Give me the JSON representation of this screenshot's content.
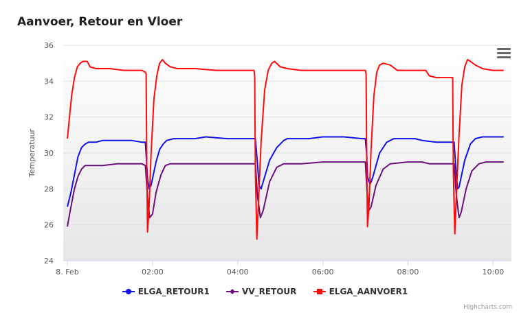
{
  "chart_data": {
    "type": "line",
    "title": "Aanvoer, Retour en Vloer",
    "ylabel": "Temperatuur",
    "xlabel": "",
    "ylim": [
      24,
      36
    ],
    "yticks": [
      "24",
      "26",
      "28",
      "30",
      "32",
      "34",
      "36"
    ],
    "xlim": [
      "00:00",
      "10:20"
    ],
    "xticks": [
      {
        "t": "00:00",
        "label": "8. Feb"
      },
      {
        "t": "02:00",
        "label": "02:00"
      },
      {
        "t": "04:00",
        "label": "04:00"
      },
      {
        "t": "06:00",
        "label": "06:00"
      },
      {
        "t": "08:00",
        "label": "08:00"
      },
      {
        "t": "10:00",
        "label": "10:00"
      }
    ],
    "grid": true,
    "legend_position": "bottom",
    "series": [
      {
        "name": "ELGA_RETOUR1",
        "color": "#1010e8",
        "marker": "circle",
        "points": [
          [
            "00:00",
            27.0
          ],
          [
            "00:05",
            27.8
          ],
          [
            "00:10",
            28.8
          ],
          [
            "00:15",
            29.8
          ],
          [
            "00:20",
            30.3
          ],
          [
            "00:25",
            30.5
          ],
          [
            "00:30",
            30.6
          ],
          [
            "00:40",
            30.6
          ],
          [
            "00:50",
            30.7
          ],
          [
            "01:05",
            30.7
          ],
          [
            "01:30",
            30.7
          ],
          [
            "01:45",
            30.6
          ],
          [
            "01:50",
            30.6
          ],
          [
            "01:53",
            28.6
          ],
          [
            "01:55",
            28.0
          ],
          [
            "01:58",
            28.2
          ],
          [
            "02:05",
            29.5
          ],
          [
            "02:10",
            30.2
          ],
          [
            "02:15",
            30.5
          ],
          [
            "02:20",
            30.7
          ],
          [
            "02:30",
            30.8
          ],
          [
            "02:50",
            30.8
          ],
          [
            "03:00",
            30.8
          ],
          [
            "03:15",
            30.9
          ],
          [
            "03:45",
            30.8
          ],
          [
            "04:20",
            30.8
          ],
          [
            "04:25",
            30.8
          ],
          [
            "04:28",
            29.4
          ],
          [
            "04:30",
            28.2
          ],
          [
            "04:33",
            28.0
          ],
          [
            "04:36",
            28.4
          ],
          [
            "04:45",
            29.6
          ],
          [
            "04:55",
            30.3
          ],
          [
            "05:05",
            30.7
          ],
          [
            "05:10",
            30.8
          ],
          [
            "05:25",
            30.8
          ],
          [
            "05:40",
            30.8
          ],
          [
            "06:00",
            30.9
          ],
          [
            "06:30",
            30.9
          ],
          [
            "06:55",
            30.8
          ],
          [
            "07:00",
            30.8
          ],
          [
            "07:02",
            29.8
          ],
          [
            "07:03",
            28.7
          ],
          [
            "07:05",
            28.4
          ],
          [
            "07:07",
            28.3
          ],
          [
            "07:10",
            28.6
          ],
          [
            "07:20",
            30.0
          ],
          [
            "07:30",
            30.6
          ],
          [
            "07:40",
            30.8
          ],
          [
            "07:50",
            30.8
          ],
          [
            "08:10",
            30.8
          ],
          [
            "08:20",
            30.7
          ],
          [
            "08:40",
            30.6
          ],
          [
            "09:00",
            30.6
          ],
          [
            "09:05",
            30.6
          ],
          [
            "09:08",
            28.8
          ],
          [
            "09:10",
            28.0
          ],
          [
            "09:12",
            28.1
          ],
          [
            "09:20",
            29.6
          ],
          [
            "09:28",
            30.5
          ],
          [
            "09:35",
            30.8
          ],
          [
            "09:45",
            30.9
          ],
          [
            "10:00",
            30.9
          ],
          [
            "10:15",
            30.9
          ]
        ]
      },
      {
        "name": "VV_RETOUR",
        "color": "#6b0f7a",
        "marker": "diamond",
        "points": [
          [
            "00:00",
            25.9
          ],
          [
            "00:05",
            27.0
          ],
          [
            "00:10",
            28.0
          ],
          [
            "00:15",
            28.7
          ],
          [
            "00:20",
            29.1
          ],
          [
            "00:25",
            29.3
          ],
          [
            "00:30",
            29.3
          ],
          [
            "00:50",
            29.3
          ],
          [
            "01:10",
            29.4
          ],
          [
            "01:30",
            29.4
          ],
          [
            "01:45",
            29.4
          ],
          [
            "01:50",
            29.3
          ],
          [
            "01:53",
            27.5
          ],
          [
            "01:56",
            26.4
          ],
          [
            "02:00",
            26.6
          ],
          [
            "02:05",
            27.8
          ],
          [
            "02:12",
            28.8
          ],
          [
            "02:18",
            29.3
          ],
          [
            "02:25",
            29.4
          ],
          [
            "03:00",
            29.4
          ],
          [
            "03:30",
            29.4
          ],
          [
            "04:00",
            29.4
          ],
          [
            "04:25",
            29.4
          ],
          [
            "04:28",
            27.6
          ],
          [
            "04:32",
            26.4
          ],
          [
            "04:36",
            26.8
          ],
          [
            "04:45",
            28.4
          ],
          [
            "04:55",
            29.2
          ],
          [
            "05:05",
            29.4
          ],
          [
            "05:30",
            29.4
          ],
          [
            "06:00",
            29.5
          ],
          [
            "06:30",
            29.5
          ],
          [
            "07:00",
            29.5
          ],
          [
            "07:02",
            28.0
          ],
          [
            "07:05",
            26.8
          ],
          [
            "07:08",
            27.0
          ],
          [
            "07:15",
            28.2
          ],
          [
            "07:25",
            29.1
          ],
          [
            "07:35",
            29.4
          ],
          [
            "08:00",
            29.5
          ],
          [
            "08:20",
            29.5
          ],
          [
            "08:30",
            29.4
          ],
          [
            "09:00",
            29.4
          ],
          [
            "09:05",
            29.4
          ],
          [
            "09:08",
            27.7
          ],
          [
            "09:12",
            26.4
          ],
          [
            "09:15",
            26.7
          ],
          [
            "09:22",
            28.0
          ],
          [
            "09:30",
            29.0
          ],
          [
            "09:40",
            29.4
          ],
          [
            "09:50",
            29.5
          ],
          [
            "10:15",
            29.5
          ]
        ]
      },
      {
        "name": "ELGA_AANVOER1",
        "color": "#ff0a0a",
        "marker": "square",
        "points": [
          [
            "00:00",
            30.8
          ],
          [
            "00:03",
            32.0
          ],
          [
            "00:06",
            33.2
          ],
          [
            "00:10",
            34.2
          ],
          [
            "00:14",
            34.8
          ],
          [
            "00:18",
            35.0
          ],
          [
            "00:22",
            35.1
          ],
          [
            "00:28",
            35.1
          ],
          [
            "00:32",
            34.8
          ],
          [
            "00:40",
            34.7
          ],
          [
            "01:00",
            34.7
          ],
          [
            "01:20",
            34.6
          ],
          [
            "01:45",
            34.6
          ],
          [
            "01:50",
            34.5
          ],
          [
            "01:51",
            34.4
          ],
          [
            "01:52",
            29.0
          ],
          [
            "01:53",
            25.6
          ],
          [
            "01:55",
            26.8
          ],
          [
            "01:58",
            30.0
          ],
          [
            "02:02",
            33.0
          ],
          [
            "02:06",
            34.3
          ],
          [
            "02:10",
            35.0
          ],
          [
            "02:14",
            35.2
          ],
          [
            "02:18",
            35.0
          ],
          [
            "02:25",
            34.8
          ],
          [
            "02:35",
            34.7
          ],
          [
            "03:00",
            34.7
          ],
          [
            "03:30",
            34.6
          ],
          [
            "04:00",
            34.6
          ],
          [
            "04:23",
            34.6
          ],
          [
            "04:24",
            34.3
          ],
          [
            "04:25",
            29.0
          ],
          [
            "04:27",
            25.2
          ],
          [
            "04:29",
            27.0
          ],
          [
            "04:33",
            30.6
          ],
          [
            "04:38",
            33.5
          ],
          [
            "04:43",
            34.6
          ],
          [
            "04:48",
            35.0
          ],
          [
            "04:52",
            35.1
          ],
          [
            "05:00",
            34.8
          ],
          [
            "05:10",
            34.7
          ],
          [
            "05:30",
            34.6
          ],
          [
            "06:00",
            34.6
          ],
          [
            "06:30",
            34.6
          ],
          [
            "07:00",
            34.6
          ],
          [
            "07:01",
            34.4
          ],
          [
            "07:02",
            29.0
          ],
          [
            "07:03",
            25.9
          ],
          [
            "07:05",
            27.0
          ],
          [
            "07:08",
            30.2
          ],
          [
            "07:12",
            33.2
          ],
          [
            "07:16",
            34.5
          ],
          [
            "07:20",
            34.9
          ],
          [
            "07:25",
            35.0
          ],
          [
            "07:35",
            34.9
          ],
          [
            "07:45",
            34.6
          ],
          [
            "08:10",
            34.6
          ],
          [
            "08:25",
            34.6
          ],
          [
            "08:30",
            34.3
          ],
          [
            "08:40",
            34.2
          ],
          [
            "09:00",
            34.2
          ],
          [
            "09:03",
            34.2
          ],
          [
            "09:04",
            29.0
          ],
          [
            "09:06",
            25.5
          ],
          [
            "09:08",
            27.5
          ],
          [
            "09:12",
            31.0
          ],
          [
            "09:16",
            33.8
          ],
          [
            "09:20",
            34.8
          ],
          [
            "09:24",
            35.2
          ],
          [
            "09:28",
            35.1
          ],
          [
            "09:35",
            34.9
          ],
          [
            "09:45",
            34.7
          ],
          [
            "10:00",
            34.6
          ],
          [
            "10:15",
            34.6
          ]
        ]
      }
    ],
    "credits": "Highcharts.com"
  }
}
